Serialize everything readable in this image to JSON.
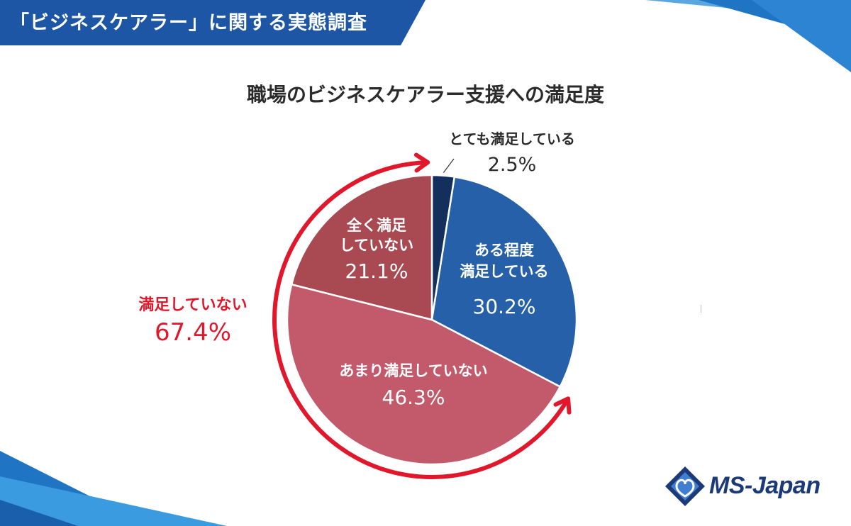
{
  "header": {
    "banner_text": "「ビジネスケアラー」に関する実態調査"
  },
  "chart_data": {
    "type": "pie",
    "title": "職場のビジネスケアラー支援への満足度",
    "start_angle_deg": 0,
    "direction": "clockwise",
    "slices": [
      {
        "label": "とても満足している",
        "value": 2.5,
        "value_text": "2.5%",
        "color": "#13305c",
        "label_position": "outside"
      },
      {
        "label": "ある程度満足している",
        "label_lines": [
          "ある程度",
          "満足している"
        ],
        "value": 30.2,
        "value_text": "30.2%",
        "color": "#2560a8",
        "label_position": "inside"
      },
      {
        "label": "あまり満足していない",
        "label_lines": [
          "あまり満足していない"
        ],
        "value": 46.3,
        "value_text": "46.3%",
        "color": "#c35a6c",
        "label_position": "inside"
      },
      {
        "label": "全く満足していない",
        "label_lines": [
          "全く満足",
          "していない"
        ],
        "value": 21.1,
        "value_text": "21.1%",
        "color": "#a94a53",
        "label_position": "inside"
      }
    ],
    "annotation": {
      "label": "満足していない",
      "value": 67.4,
      "value_text": "67.4%",
      "color": "#e1182c"
    }
  },
  "colors": {
    "banner": "#1d56a5",
    "accent_red": "#e1182c",
    "brand_navy": "#1c3a78"
  },
  "logo": {
    "text": "MS-Japan"
  }
}
